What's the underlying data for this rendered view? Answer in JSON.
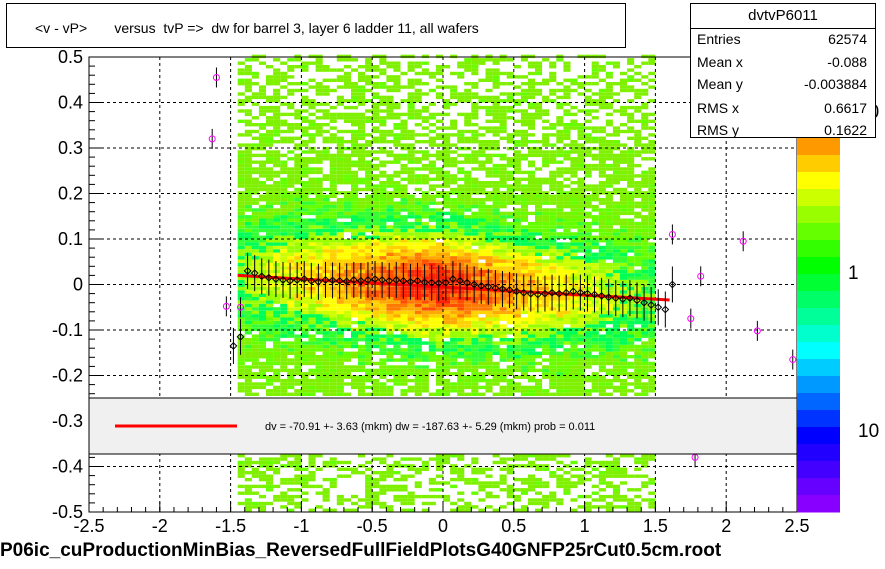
{
  "title": "<v - vP>       versus  tvP =>  dw for barrel 3, layer 6 ladder 11, all wafers",
  "stats": {
    "name": "dvtvP6011",
    "rows": [
      {
        "label": "Entries",
        "value": "62574"
      },
      {
        "label": "Mean x",
        "value": "-0.088"
      },
      {
        "label": "Mean y",
        "value": "-0.003884"
      },
      {
        "label": "RMS x",
        "value": "0.6617"
      },
      {
        "label": "RMS y",
        "value": "0.1622"
      }
    ]
  },
  "legend_text": "dv =  -70.91 +-  3.63 (mkm) dw = -187.63 +-  5.29 (mkm) prob = 0.011",
  "footer": "P06ic_cuProductionMinBias_ReversedFullFieldPlotsG40GNFP25rCut0.5cm.root",
  "chart_data": {
    "type": "heatmap",
    "xlim": [
      -2.5,
      2.5
    ],
    "ylim": [
      -0.5,
      0.5
    ],
    "x_ticks": [
      "-2.5",
      "-2",
      "-1.5",
      "-1",
      "-0.5",
      "0",
      "0.5",
      "1",
      "1.5",
      "2",
      "2.5"
    ],
    "y_ticks": [
      "-0.5",
      "-0.4",
      "-0.3",
      "-0.2",
      "-0.1",
      "0",
      "0.1",
      "0.2",
      "0.3",
      "0.4",
      "0.5"
    ],
    "grid": true,
    "colorbar_labels": [
      "10",
      "1",
      "10"
    ],
    "fit_line": {
      "x": [
        -1.45,
        1.6
      ],
      "y": [
        0.02,
        -0.034
      ],
      "color": "#ff0000"
    },
    "profile_points": [
      {
        "x": -1.48,
        "y": -0.135
      },
      {
        "x": -1.43,
        "y": -0.115
      },
      {
        "x": -1.38,
        "y": 0.03
      },
      {
        "x": -1.33,
        "y": 0.025
      },
      {
        "x": -1.28,
        "y": 0.018
      },
      {
        "x": -1.23,
        "y": 0.015
      },
      {
        "x": -1.18,
        "y": 0.012
      },
      {
        "x": -1.13,
        "y": 0.01
      },
      {
        "x": -1.08,
        "y": 0.008
      },
      {
        "x": -1.03,
        "y": 0.01
      },
      {
        "x": -0.98,
        "y": 0.012
      },
      {
        "x": -0.93,
        "y": 0.008
      },
      {
        "x": -0.88,
        "y": 0.006
      },
      {
        "x": -0.83,
        "y": 0.01
      },
      {
        "x": -0.78,
        "y": 0.009
      },
      {
        "x": -0.73,
        "y": 0.008
      },
      {
        "x": -0.68,
        "y": 0.007
      },
      {
        "x": -0.63,
        "y": 0.01
      },
      {
        "x": -0.58,
        "y": 0.008
      },
      {
        "x": -0.53,
        "y": 0.01
      },
      {
        "x": -0.48,
        "y": 0.012
      },
      {
        "x": -0.43,
        "y": 0.01
      },
      {
        "x": -0.38,
        "y": 0.008
      },
      {
        "x": -0.33,
        "y": 0.01
      },
      {
        "x": -0.28,
        "y": 0.008
      },
      {
        "x": -0.23,
        "y": 0.006
      },
      {
        "x": -0.18,
        "y": 0.008
      },
      {
        "x": -0.13,
        "y": 0.005
      },
      {
        "x": -0.08,
        "y": 0.004
      },
      {
        "x": -0.03,
        "y": 0.003
      },
      {
        "x": 0.02,
        "y": 0.004
      },
      {
        "x": 0.07,
        "y": 0.012
      },
      {
        "x": 0.12,
        "y": 0.008
      },
      {
        "x": 0.17,
        "y": 0.004
      },
      {
        "x": 0.22,
        "y": 0.0
      },
      {
        "x": 0.27,
        "y": -0.003
      },
      {
        "x": 0.32,
        "y": -0.005
      },
      {
        "x": 0.37,
        "y": -0.008
      },
      {
        "x": 0.42,
        "y": -0.01
      },
      {
        "x": 0.47,
        "y": -0.012
      },
      {
        "x": 0.52,
        "y": -0.015
      },
      {
        "x": 0.57,
        "y": -0.018
      },
      {
        "x": 0.62,
        "y": -0.02
      },
      {
        "x": 0.67,
        "y": -0.022
      },
      {
        "x": 0.72,
        "y": -0.02
      },
      {
        "x": 0.77,
        "y": -0.018
      },
      {
        "x": 0.82,
        "y": -0.02
      },
      {
        "x": 0.87,
        "y": -0.018
      },
      {
        "x": 0.92,
        "y": -0.015
      },
      {
        "x": 0.97,
        "y": -0.018
      },
      {
        "x": 1.02,
        "y": -0.02
      },
      {
        "x": 1.07,
        "y": -0.022
      },
      {
        "x": 1.12,
        "y": -0.025
      },
      {
        "x": 1.17,
        "y": -0.028
      },
      {
        "x": 1.22,
        "y": -0.03
      },
      {
        "x": 1.27,
        "y": -0.032
      },
      {
        "x": 1.32,
        "y": -0.03
      },
      {
        "x": 1.37,
        "y": -0.035
      },
      {
        "x": 1.42,
        "y": -0.04
      },
      {
        "x": 1.47,
        "y": -0.045
      },
      {
        "x": 1.52,
        "y": -0.05
      },
      {
        "x": 1.57,
        "y": -0.055
      },
      {
        "x": 1.62,
        "y": 0.0
      }
    ],
    "outlier_points": [
      {
        "x": -1.6,
        "y": 0.455
      },
      {
        "x": -1.63,
        "y": 0.32
      },
      {
        "x": -1.53,
        "y": -0.048
      },
      {
        "x": -1.43,
        "y": -0.05
      },
      {
        "x": 1.62,
        "y": 0.11
      },
      {
        "x": 1.82,
        "y": 0.018
      },
      {
        "x": 1.75,
        "y": -0.075
      },
      {
        "x": 2.12,
        "y": 0.095
      },
      {
        "x": 2.22,
        "y": -0.102
      },
      {
        "x": 2.47,
        "y": -0.165
      },
      {
        "x": 1.78,
        "y": -0.38
      }
    ]
  }
}
